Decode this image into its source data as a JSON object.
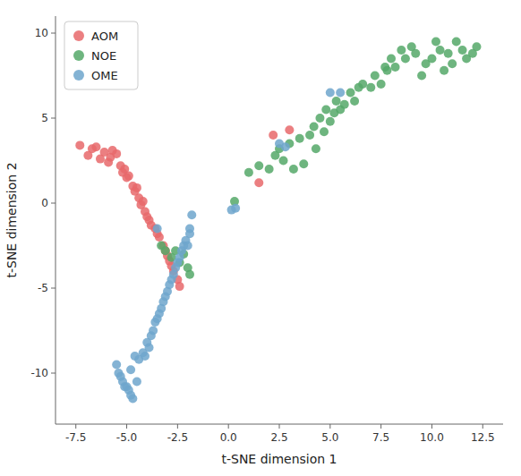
{
  "chart_data": {
    "type": "scatter",
    "xlabel": "t-SNE dimension 1",
    "ylabel": "t-SNE dimension 2",
    "xlim": [
      -8.5,
      13.5
    ],
    "ylim": [
      -13.0,
      11.0
    ],
    "xticks": [
      -7.5,
      {
        "value": -5.0,
        "label": "-5.0"
      },
      -2.5,
      {
        "value": 0.0,
        "label": "0.0"
      },
      2.5,
      {
        "value": 5.0,
        "label": "5.0"
      },
      7.5,
      {
        "value": 10.0,
        "label": "10.0"
      },
      12.5
    ],
    "yticks": [
      -10,
      -5,
      0,
      5,
      10
    ],
    "grid": false,
    "legend": "upper left",
    "series": [
      {
        "name": "AOM",
        "color": "#E8696B",
        "x": [
          -7.3,
          -6.9,
          -6.7,
          -6.5,
          -6.3,
          -6.1,
          -5.9,
          -5.8,
          -5.7,
          -5.5,
          -5.3,
          -5.2,
          -5.1,
          -5.0,
          -4.9,
          -4.7,
          -4.6,
          -4.5,
          -4.4,
          -4.3,
          -4.2,
          -4.1,
          -4.0,
          -3.9,
          -3.8,
          -3.6,
          -3.5,
          -3.4,
          -3.2,
          -3.1,
          -3.0,
          -2.9,
          -2.8,
          -2.7,
          -2.5,
          -2.4,
          2.2,
          3.0,
          1.5
        ],
        "values": [
          3.4,
          2.8,
          3.2,
          3.3,
          2.6,
          3.0,
          2.4,
          2.7,
          3.1,
          2.9,
          2.2,
          1.8,
          2.0,
          1.5,
          1.6,
          1.0,
          0.7,
          0.9,
          0.3,
          -0.1,
          0.1,
          -0.5,
          -0.8,
          -1.0,
          -1.3,
          -1.5,
          -1.8,
          -2.0,
          -2.5,
          -2.8,
          -3.1,
          -3.4,
          -3.7,
          -4.0,
          -4.5,
          -4.9,
          4.0,
          4.3,
          1.2
        ]
      },
      {
        "name": "NOE",
        "color": "#55A868",
        "x": [
          -3.3,
          -3.1,
          -2.8,
          -2.6,
          -2.4,
          -2.2,
          -2.0,
          -1.9,
          0.3,
          1.0,
          1.5,
          2.0,
          2.3,
          2.5,
          2.7,
          3.0,
          3.2,
          3.5,
          3.7,
          4.0,
          4.2,
          4.3,
          4.5,
          4.7,
          4.8,
          5.0,
          5.2,
          5.3,
          5.5,
          5.7,
          6.0,
          6.2,
          6.4,
          6.6,
          7.0,
          7.2,
          7.5,
          7.7,
          7.8,
          8.0,
          8.2,
          8.5,
          8.7,
          9.0,
          9.2,
          9.5,
          9.7,
          10.0,
          10.2,
          10.4,
          10.6,
          10.8,
          11.0,
          11.2,
          11.5,
          11.7,
          12.0,
          12.2
        ],
        "values": [
          -2.5,
          -2.8,
          -3.2,
          -2.8,
          -3.5,
          -3.0,
          -3.8,
          -4.2,
          0.1,
          1.8,
          2.2,
          2.0,
          2.8,
          3.2,
          2.5,
          3.5,
          2.0,
          3.8,
          2.3,
          4.0,
          4.5,
          3.2,
          5.0,
          4.2,
          5.5,
          4.8,
          5.3,
          6.0,
          5.5,
          5.8,
          6.5,
          6.0,
          6.8,
          7.0,
          6.8,
          7.5,
          7.0,
          8.0,
          7.8,
          8.5,
          8.0,
          9.0,
          8.5,
          9.2,
          8.8,
          7.5,
          8.2,
          8.5,
          9.5,
          9.0,
          7.8,
          8.8,
          8.2,
          9.5,
          9.0,
          8.5,
          8.8,
          9.2
        ]
      },
      {
        "name": "OME",
        "color": "#6EA6CD",
        "x": [
          -5.5,
          -5.4,
          -5.3,
          -5.2,
          -5.1,
          -5.0,
          -4.9,
          -4.8,
          -4.8,
          -4.7,
          -4.6,
          -4.5,
          -4.4,
          -4.2,
          -4.1,
          -4.0,
          -3.9,
          -3.8,
          -3.7,
          -3.6,
          -3.5,
          -3.4,
          -3.3,
          -3.2,
          -3.1,
          -3.0,
          -2.9,
          -2.8,
          -2.7,
          -2.6,
          -2.5,
          -2.4,
          -2.3,
          -2.2,
          -2.1,
          -2.0,
          -1.9,
          -1.9,
          -1.8,
          -3.5,
          0.15,
          0.35,
          2.5,
          2.8,
          5.0,
          5.5
        ],
        "values": [
          -9.5,
          -10.0,
          -10.2,
          -10.5,
          -10.8,
          -10.8,
          -11.0,
          -11.3,
          -9.8,
          -11.5,
          -9.0,
          -10.5,
          -9.2,
          -8.8,
          -9.0,
          -8.2,
          -8.5,
          -7.8,
          -7.5,
          -7.0,
          -6.8,
          -6.5,
          -6.2,
          -5.8,
          -5.5,
          -5.2,
          -4.8,
          -4.5,
          -4.2,
          -3.8,
          -3.5,
          -3.2,
          -2.8,
          -2.5,
          -2.2,
          -2.5,
          -1.8,
          -1.5,
          -0.7,
          -1.5,
          -0.4,
          -0.3,
          3.5,
          3.3,
          6.5,
          6.5
        ]
      }
    ]
  }
}
